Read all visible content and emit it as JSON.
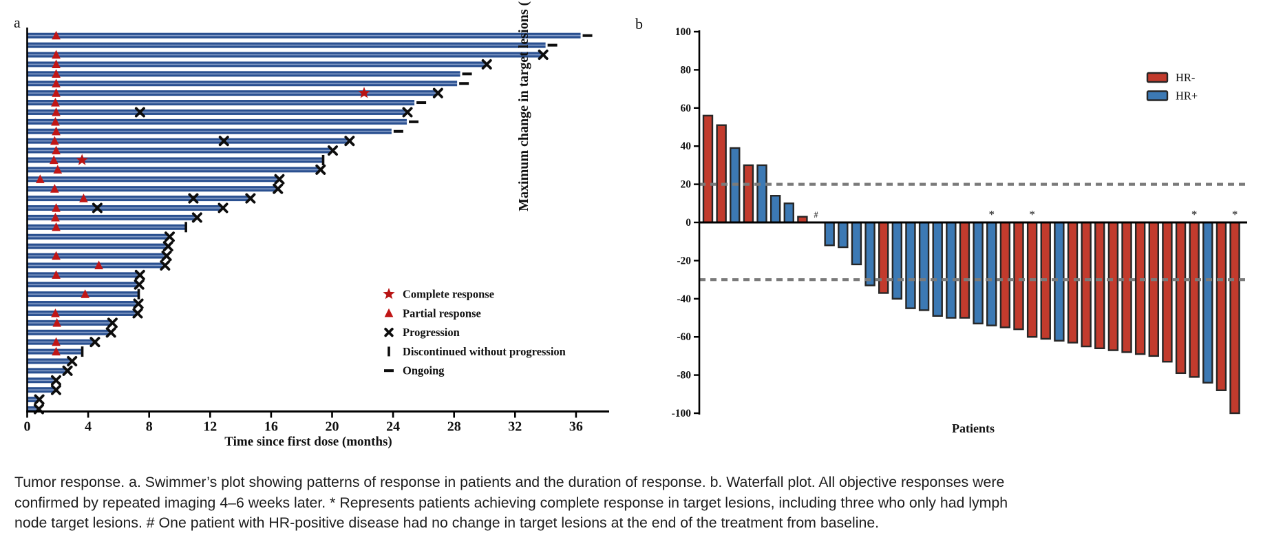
{
  "caption": {
    "lines": [
      "Tumor response. a. Swimmer’s plot showing patterns of response in patients and the duration of response. b. Waterfall plot. All objective responses were",
      "confirmed by repeated imaging 4–6 weeks later. * Represents patients achieving complete response in target lesions, including three who only had lymph",
      "node target lesions. # One patient with HR-positive disease had no change in target lesions at the end of the treatment from baseline."
    ]
  },
  "colors": {
    "swimmer_bar_dark": "#2a5090",
    "swimmer_bar_light": "#97acd2",
    "marker_red": "#c01616",
    "hr_negative_red": "#c23b2d",
    "hr_positive_blue": "#3c79b4",
    "bar_outline": "#262626",
    "reference_dash_gray": "#7a7a7a",
    "axis_black": "#000000"
  },
  "chart_data": [
    {
      "id": "swimmer",
      "type": "swimmer",
      "panel_label": "a",
      "xlabel": "Time since first dose (months)",
      "xticks": [
        0,
        4,
        8,
        12,
        16,
        20,
        24,
        28,
        32,
        36
      ],
      "xlim": [
        0,
        38
      ],
      "legend": [
        {
          "symbol": "star",
          "label": "Complete response"
        },
        {
          "symbol": "triangle",
          "label": "Partial response"
        },
        {
          "symbol": "cross",
          "label": "Progression"
        },
        {
          "symbol": "tick",
          "label": "Discontinued without progression"
        },
        {
          "symbol": "dash",
          "label": "Ongoing"
        }
      ],
      "patients": [
        {
          "months": 36.3,
          "pr": 1.9,
          "cr": null,
          "mid_x": [],
          "end": "ongoing"
        },
        {
          "months": 34.0,
          "pr": null,
          "cr": null,
          "mid_x": [],
          "end": "ongoing"
        },
        {
          "months": 33.8,
          "pr": 1.9,
          "cr": null,
          "mid_x": [],
          "end": "progression"
        },
        {
          "months": 30.1,
          "pr": 1.9,
          "cr": null,
          "mid_x": [],
          "end": "progression"
        },
        {
          "months": 28.4,
          "pr": 1.9,
          "cr": null,
          "mid_x": [],
          "end": "ongoing"
        },
        {
          "months": 28.2,
          "pr": 1.9,
          "cr": null,
          "mid_x": [],
          "end": "ongoing"
        },
        {
          "months": 26.9,
          "pr": 1.9,
          "cr": 22.1,
          "mid_x": [],
          "end": "progression"
        },
        {
          "months": 25.4,
          "pr": 1.85,
          "cr": null,
          "mid_x": [],
          "end": "ongoing"
        },
        {
          "months": 24.9,
          "pr": 1.9,
          "cr": null,
          "mid_x": [
            7.4
          ],
          "end": "progression"
        },
        {
          "months": 24.9,
          "pr": 1.85,
          "cr": null,
          "mid_x": [],
          "end": "ongoing"
        },
        {
          "months": 23.9,
          "pr": 1.9,
          "cr": null,
          "mid_x": [],
          "end": "ongoing"
        },
        {
          "months": 21.1,
          "pr": 1.8,
          "cr": null,
          "mid_x": [
            12.9
          ],
          "end": "progression"
        },
        {
          "months": 20.0,
          "pr": 1.9,
          "cr": null,
          "mid_x": [],
          "end": "progression"
        },
        {
          "months": 19.4,
          "pr": 1.75,
          "cr": 3.6,
          "mid_x": [],
          "end": "discontinued"
        },
        {
          "months": 19.2,
          "pr": 2.0,
          "cr": null,
          "mid_x": [],
          "end": "progression"
        },
        {
          "months": 16.5,
          "pr": 0.85,
          "cr": null,
          "mid_x": [],
          "end": "progression"
        },
        {
          "months": 16.4,
          "pr": 1.8,
          "cr": null,
          "mid_x": [],
          "end": "progression"
        },
        {
          "months": 14.6,
          "pr": 3.7,
          "cr": null,
          "mid_x": [
            10.9
          ],
          "end": "progression"
        },
        {
          "months": 12.8,
          "pr": 1.9,
          "cr": null,
          "mid_x": [
            4.6
          ],
          "end": "progression"
        },
        {
          "months": 11.1,
          "pr": 1.85,
          "cr": null,
          "mid_x": [],
          "end": "progression"
        },
        {
          "months": 10.4,
          "pr": 1.9,
          "cr": null,
          "mid_x": [],
          "end": "discontinued"
        },
        {
          "months": 9.3,
          "pr": null,
          "cr": null,
          "mid_x": [],
          "end": "progression"
        },
        {
          "months": 9.2,
          "pr": null,
          "cr": null,
          "mid_x": [],
          "end": "progression"
        },
        {
          "months": 9.1,
          "pr": 1.9,
          "cr": null,
          "mid_x": [],
          "end": "progression"
        },
        {
          "months": 9.0,
          "pr": 4.7,
          "cr": null,
          "mid_x": [],
          "end": "progression"
        },
        {
          "months": 7.35,
          "pr": 1.9,
          "cr": null,
          "mid_x": [],
          "end": "progression"
        },
        {
          "months": 7.3,
          "pr": null,
          "cr": null,
          "mid_x": [],
          "end": "progression"
        },
        {
          "months": 7.3,
          "pr": 3.8,
          "cr": null,
          "mid_x": [],
          "end": "discontinued"
        },
        {
          "months": 7.25,
          "pr": null,
          "cr": null,
          "mid_x": [],
          "end": "progression"
        },
        {
          "months": 7.2,
          "pr": 1.85,
          "cr": null,
          "mid_x": [],
          "end": "progression"
        },
        {
          "months": 5.55,
          "pr": 1.95,
          "cr": null,
          "mid_x": [],
          "end": "progression"
        },
        {
          "months": 5.45,
          "pr": null,
          "cr": null,
          "mid_x": [],
          "end": "progression"
        },
        {
          "months": 4.4,
          "pr": 1.9,
          "cr": null,
          "mid_x": [],
          "end": "progression"
        },
        {
          "months": 3.6,
          "pr": 1.9,
          "cr": null,
          "mid_x": [],
          "end": "discontinued"
        },
        {
          "months": 2.9,
          "pr": null,
          "cr": null,
          "mid_x": [],
          "end": "progression"
        },
        {
          "months": 2.6,
          "pr": null,
          "cr": null,
          "mid_x": [],
          "end": "progression"
        },
        {
          "months": 1.85,
          "pr": null,
          "cr": null,
          "mid_x": [],
          "end": "progression"
        },
        {
          "months": 1.85,
          "pr": null,
          "cr": null,
          "mid_x": [],
          "end": "progression"
        },
        {
          "months": 0.75,
          "pr": null,
          "cr": null,
          "mid_x": [],
          "end": "progression"
        },
        {
          "months": 0.72,
          "pr": null,
          "cr": null,
          "mid_x": [],
          "end": "progression"
        }
      ]
    },
    {
      "id": "waterfall",
      "type": "bar",
      "panel_label": "b",
      "ylabel": "Maximum change in target lesions (%)",
      "xlabel": "Patients",
      "ylim": [
        -100,
        100
      ],
      "yticks": [
        100,
        80,
        60,
        40,
        20,
        0,
        -20,
        -40,
        -60,
        -80,
        -100
      ],
      "reference_lines": [
        20,
        -30
      ],
      "legend": [
        {
          "label": "HR-",
          "color": "#c23b2d"
        },
        {
          "label": "HR+",
          "color": "#3c79b4"
        }
      ],
      "values": [
        56,
        51,
        39,
        30,
        30,
        14,
        10,
        3,
        0,
        -12,
        -13,
        -22,
        -33,
        -37,
        -40,
        -45,
        -46,
        -49,
        -50,
        -50,
        -53,
        -54,
        -55,
        -56,
        -60,
        -61,
        -62,
        -63,
        -65,
        -66,
        -67,
        -68,
        -69,
        -70,
        -73,
        -79,
        -81,
        -84,
        -88,
        -100
      ],
      "groups": [
        "HR-",
        "HR-",
        "HR+",
        "HR-",
        "HR+",
        "HR+",
        "HR+",
        "HR-",
        "HR+",
        "HR+",
        "HR+",
        "HR+",
        "HR+",
        "HR-",
        "HR+",
        "HR+",
        "HR+",
        "HR+",
        "HR+",
        "HR-",
        "HR+",
        "HR+",
        "HR-",
        "HR-",
        "HR-",
        "HR-",
        "HR+",
        "HR-",
        "HR-",
        "HR-",
        "HR-",
        "HR-",
        "HR-",
        "HR-",
        "HR-",
        "HR-",
        "HR-",
        "HR+",
        "HR-",
        "HR-"
      ],
      "star_indices": [
        21,
        24,
        36,
        39
      ],
      "star_symbol": "*",
      "hash_index": 8,
      "hash_symbol": "#"
    }
  ]
}
